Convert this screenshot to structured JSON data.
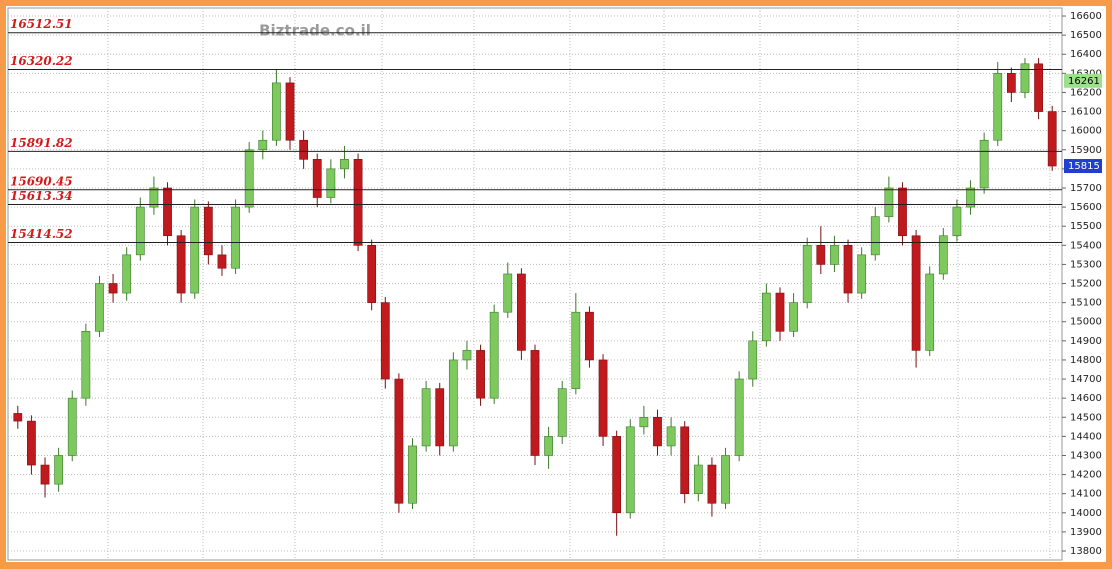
{
  "chart_data": {
    "type": "candlestick",
    "watermark": "Biztrade.co.il",
    "ylim": [
      13753,
      16642
    ],
    "yticks": [
      13800,
      13900,
      14000,
      14100,
      14200,
      14300,
      14400,
      14500,
      14600,
      14700,
      14800,
      14900,
      15000,
      15100,
      15200,
      15300,
      15400,
      15500,
      15600,
      15700,
      15800,
      15900,
      16000,
      16100,
      16200,
      16300,
      16400,
      16500,
      16600
    ],
    "grid": true,
    "up_color": "#7dc95e",
    "down_color": "#c01a1f",
    "open": [
      14520,
      14480,
      14250,
      14150,
      14300,
      14600,
      14950,
      15200,
      15150,
      15350,
      15600,
      15700,
      15450,
      15150,
      15600,
      15350,
      15280,
      15600,
      15900,
      15950,
      16250,
      15950,
      15850,
      15650,
      15800,
      15850,
      15400,
      15100,
      14700,
      14050,
      14350,
      14650,
      14350,
      14800,
      14850,
      14600,
      15050,
      15250,
      14850,
      14300,
      14400,
      14650,
      15050,
      14800,
      14400,
      14000,
      14450,
      14500,
      14350,
      14450,
      14100,
      14250,
      14050,
      14300,
      14700,
      14900,
      15150,
      14950,
      15100,
      15400,
      15300,
      15400,
      15150,
      15350,
      15550,
      15700,
      15450,
      14850,
      15250,
      15450,
      15600,
      15700,
      15950,
      16300,
      16200,
      16350,
      16100
    ],
    "high": [
      14560,
      14510,
      14290,
      14340,
      14640,
      14990,
      15240,
      15250,
      15390,
      15650,
      15760,
      15730,
      15480,
      15640,
      15630,
      15400,
      15640,
      15940,
      16000,
      16320,
      16280,
      16000,
      15880,
      15850,
      15920,
      15880,
      15430,
      15130,
      14730,
      14390,
      14690,
      14680,
      14840,
      14900,
      14880,
      15090,
      15310,
      15280,
      14880,
      14450,
      14690,
      15150,
      15080,
      14830,
      14430,
      14490,
      14560,
      14540,
      14500,
      14480,
      14300,
      14290,
      14340,
      14740,
      14950,
      15200,
      15180,
      15150,
      15440,
      15500,
      15450,
      15430,
      15390,
      15600,
      15760,
      15730,
      15480,
      15290,
      15490,
      15640,
      15740,
      15990,
      16360,
      16330,
      16380,
      16380,
      16130
    ],
    "low": [
      14440,
      14200,
      14080,
      14110,
      14270,
      14560,
      14920,
      15100,
      15110,
      15320,
      15560,
      15400,
      15100,
      15120,
      15300,
      15240,
      15250,
      15570,
      15850,
      15920,
      15900,
      15800,
      15600,
      15620,
      15750,
      15370,
      15060,
      14650,
      14000,
      14020,
      14320,
      14300,
      14320,
      14750,
      14560,
      14570,
      15020,
      14800,
      14250,
      14230,
      14360,
      14620,
      14760,
      14350,
      13880,
      13970,
      14410,
      14300,
      14300,
      14050,
      14060,
      13980,
      14020,
      14270,
      14660,
      14870,
      14900,
      14920,
      15070,
      15250,
      15260,
      15100,
      15120,
      15320,
      15520,
      15400,
      14760,
      14820,
      15220,
      15420,
      15560,
      15670,
      15920,
      16150,
      16170,
      16060,
      15790
    ],
    "close": [
      14480,
      14250,
      14150,
      14300,
      14600,
      14950,
      15200,
      15150,
      15350,
      15600,
      15700,
      15450,
      15150,
      15600,
      15350,
      15280,
      15600,
      15900,
      15950,
      16250,
      15950,
      15850,
      15650,
      15800,
      15850,
      15400,
      15100,
      14700,
      14050,
      14350,
      14650,
      14350,
      14800,
      14850,
      14600,
      15050,
      15250,
      14850,
      14300,
      14400,
      14650,
      15050,
      14800,
      14400,
      14000,
      14450,
      14500,
      14350,
      14450,
      14100,
      14250,
      14050,
      14300,
      14700,
      14900,
      15150,
      14950,
      15100,
      15400,
      15300,
      15400,
      15150,
      15350,
      15550,
      15700,
      15450,
      14850,
      15250,
      15450,
      15600,
      15700,
      15950,
      16300,
      16200,
      16350,
      16100,
      15815
    ],
    "levels": [
      16512.51,
      16320.22,
      15891.82,
      15690.45,
      15613.34,
      15414.52
    ],
    "level_color": "#d11a1a",
    "price_tags": [
      {
        "value": 16261,
        "color": "#9be08a"
      },
      {
        "value": 15815,
        "color": "#1f3fd0"
      }
    ]
  }
}
